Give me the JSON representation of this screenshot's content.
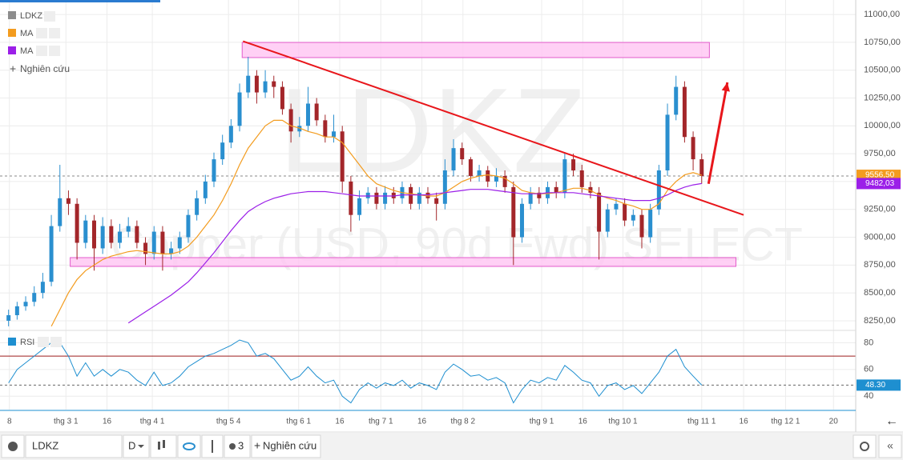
{
  "chart_data": [
    {
      "type": "candlestick",
      "name": "LDKZ",
      "color": "#8c8c8c",
      "up_color": "#2a8fcf",
      "down_color": "#a3262a",
      "watermark": "LDKZ",
      "watermark_subtitle": "Copper (USD, 90d Fwd) SELECT",
      "x": [
        1,
        2,
        3,
        4,
        5,
        6,
        7,
        8,
        9,
        10,
        11,
        12,
        13,
        14,
        15,
        16,
        17,
        18,
        19,
        20,
        21,
        22,
        23,
        24,
        25,
        26,
        27,
        28,
        29,
        30,
        31,
        32,
        33,
        34,
        35,
        36,
        37,
        38,
        39,
        40,
        41,
        42,
        43,
        44,
        45,
        46,
        47,
        48,
        49,
        50,
        51,
        52,
        53,
        54,
        55,
        56,
        57,
        58,
        59,
        60,
        61,
        62,
        63,
        64,
        65,
        66,
        67,
        68,
        69,
        70,
        71,
        72,
        73,
        74,
        75,
        76,
        77,
        78,
        79,
        80,
        81,
        82
      ],
      "open": [
        8250,
        8300,
        8380,
        8420,
        8500,
        8600,
        9100,
        9350,
        9300,
        8950,
        9150,
        8900,
        9100,
        8950,
        9050,
        9100,
        8950,
        8850,
        9050,
        8850,
        8900,
        9000,
        9200,
        9350,
        9500,
        9700,
        9850,
        10000,
        10300,
        10450,
        10300,
        10400,
        10350,
        10150,
        9950,
        10000,
        10200,
        10050,
        9900,
        9950,
        9500,
        9200,
        9350,
        9400,
        9300,
        9400,
        9350,
        9450,
        9300,
        9400,
        9350,
        9300,
        9600,
        9800,
        9700,
        9550,
        9600,
        9500,
        9550,
        9450,
        9000,
        9300,
        9400,
        9350,
        9450,
        9400,
        9700,
        9600,
        9450,
        9400,
        9050,
        9250,
        9300,
        9150,
        9200,
        9000,
        9250,
        9600,
        10100,
        10350,
        9900,
        9700
      ],
      "high": [
        8350,
        8420,
        8470,
        8560,
        8680,
        9200,
        9650,
        9420,
        9350,
        9200,
        9200,
        9180,
        9160,
        9120,
        9180,
        9150,
        9000,
        9100,
        9100,
        8960,
        9050,
        9250,
        9420,
        9560,
        9760,
        9920,
        10060,
        10380,
        10620,
        10500,
        10500,
        10450,
        10400,
        10200,
        10080,
        10350,
        10250,
        10100,
        10100,
        10000,
        9550,
        9420,
        9450,
        9450,
        9460,
        9450,
        9500,
        9480,
        9450,
        9450,
        9400,
        9700,
        9880,
        9850,
        9720,
        9650,
        9640,
        9620,
        9600,
        9500,
        9350,
        9450,
        9450,
        9500,
        9500,
        9760,
        9750,
        9650,
        9500,
        9450,
        9300,
        9350,
        9350,
        9250,
        9250,
        9300,
        9650,
        10200,
        10450,
        10400,
        9950,
        9750
      ],
      "low": [
        8200,
        8260,
        8340,
        8380,
        8450,
        8560,
        9050,
        9200,
        8800,
        8900,
        8700,
        8850,
        8900,
        8900,
        9000,
        8900,
        8750,
        8800,
        8700,
        8800,
        8850,
        8950,
        9150,
        9300,
        9450,
        9650,
        9800,
        9950,
        10250,
        10200,
        10250,
        10250,
        10100,
        9850,
        9900,
        9950,
        10000,
        9850,
        9850,
        9400,
        9050,
        9150,
        9300,
        9250,
        9250,
        9300,
        9300,
        9250,
        9250,
        9300,
        9150,
        9250,
        9550,
        9650,
        9500,
        9500,
        9450,
        9450,
        9400,
        8750,
        8950,
        9250,
        9300,
        9300,
        9350,
        9350,
        9550,
        9400,
        9350,
        8800,
        9000,
        9200,
        9100,
        9100,
        8900,
        8950,
        9200,
        9550,
        10050,
        9850,
        9600,
        9480
      ],
      "close": [
        8300,
        8380,
        8420,
        8500,
        8600,
        9100,
        9350,
        9300,
        8950,
        9150,
        8900,
        9100,
        8950,
        9050,
        9100,
        8950,
        8850,
        9050,
        8850,
        8900,
        9000,
        9200,
        9350,
        9500,
        9700,
        9850,
        10000,
        10300,
        10450,
        10300,
        10400,
        10350,
        10150,
        9950,
        10000,
        10200,
        10050,
        9900,
        9950,
        9500,
        9200,
        9350,
        9400,
        9300,
        9400,
        9350,
        9450,
        9300,
        9400,
        9350,
        9300,
        9600,
        9800,
        9700,
        9550,
        9600,
        9500,
        9550,
        9450,
        9000,
        9300,
        9400,
        9350,
        9450,
        9400,
        9700,
        9600,
        9450,
        9400,
        9050,
        9250,
        9300,
        9150,
        9200,
        9000,
        9250,
        9600,
        10100,
        10350,
        9900,
        9700,
        9550
      ],
      "series": [
        {
          "name": "MA",
          "color": "#f39c1f",
          "last_label": "9556,50",
          "values": [
            null,
            null,
            null,
            null,
            null,
            8200,
            8350,
            8500,
            8620,
            8700,
            8750,
            8800,
            8830,
            8850,
            8870,
            8880,
            8870,
            8860,
            8850,
            8850,
            8870,
            8920,
            9000,
            9100,
            9200,
            9330,
            9480,
            9650,
            9800,
            9900,
            10000,
            10050,
            10050,
            10000,
            9980,
            9950,
            9930,
            9900,
            9900,
            9850,
            9750,
            9650,
            9550,
            9480,
            9450,
            9420,
            9400,
            9390,
            9380,
            9370,
            9370,
            9400,
            9450,
            9500,
            9530,
            9550,
            9560,
            9550,
            9530,
            9480,
            9420,
            9400,
            9390,
            9390,
            9400,
            9420,
            9440,
            9440,
            9420,
            9380,
            9350,
            9330,
            9300,
            9280,
            9250,
            9250,
            9300,
            9420,
            9500,
            9560,
            9580,
            9556.5
          ]
        },
        {
          "name": "MA",
          "color": "#9b1fe8",
          "last_label": "9482,03",
          "values": [
            null,
            null,
            null,
            null,
            null,
            null,
            null,
            null,
            null,
            null,
            null,
            null,
            null,
            null,
            8230,
            8280,
            8330,
            8380,
            8430,
            8480,
            8540,
            8600,
            8680,
            8770,
            8860,
            8960,
            9060,
            9150,
            9230,
            9280,
            9320,
            9350,
            9370,
            9390,
            9400,
            9410,
            9410,
            9410,
            9400,
            9390,
            9380,
            9370,
            9370,
            9370,
            9370,
            9370,
            9380,
            9380,
            9380,
            9380,
            9390,
            9400,
            9410,
            9420,
            9430,
            9430,
            9430,
            9420,
            9410,
            9400,
            9390,
            9390,
            9390,
            9400,
            9400,
            9400,
            9400,
            9390,
            9380,
            9370,
            9360,
            9350,
            9340,
            9330,
            9330,
            9330,
            9350,
            9380,
            9420,
            9450,
            9470,
            9482.03
          ]
        }
      ],
      "zones": [
        {
          "xlim": [
            28.3,
            82.9
          ],
          "ylim": [
            10613,
            10749
          ]
        },
        {
          "xlim": [
            8.2,
            86
          ],
          "ylim": [
            8738,
            8817
          ]
        }
      ],
      "trendline": {
        "x": [
          28.4,
          86.9
        ],
        "y": [
          10760,
          9200
        ]
      },
      "arrow": {
        "x": [
          82.8,
          85
        ],
        "y": [
          9480,
          10390
        ]
      },
      "xlim": [
        0,
        100
      ],
      "ylim": [
        8185,
        11130
      ],
      "grid": true,
      "xticks": [
        {
          "value": 1.1,
          "label": "8"
        },
        {
          "value": 7.7,
          "label": "thg 3 1"
        },
        {
          "value": 12.5,
          "label": "16"
        },
        {
          "value": 17.8,
          "label": "thg 4 1"
        },
        {
          "value": 26.7,
          "label": "thg 5 4"
        },
        {
          "value": 34.9,
          "label": "thg 6 1"
        },
        {
          "value": 39.7,
          "label": "16"
        },
        {
          "value": 44.5,
          "label": "thg 7 1"
        },
        {
          "value": 49.3,
          "label": "16"
        },
        {
          "value": 54.1,
          "label": "thg 8 2"
        },
        {
          "value": 63.3,
          "label": "thg 9 1"
        },
        {
          "value": 68.1,
          "label": "16"
        },
        {
          "value": 72.8,
          "label": "thg 10 1"
        },
        {
          "value": 82,
          "label": "thg 11 1"
        },
        {
          "value": 86.9,
          "label": "16"
        },
        {
          "value": 91.8,
          "label": "thg 12 1"
        },
        {
          "value": 97.4,
          "label": "20"
        }
      ],
      "yticks": [
        {
          "value": 8250,
          "label": "8250,00"
        },
        {
          "value": 8500,
          "label": "8500,00"
        },
        {
          "value": 8750,
          "label": "8750,00"
        },
        {
          "value": 9000,
          "label": "9000,00"
        },
        {
          "value": 9250,
          "label": "9250,00"
        },
        {
          "value": 9500,
          "label": "9500,00"
        },
        {
          "value": 9750,
          "label": "9750,00"
        },
        {
          "value": 10000,
          "label": "10000,00"
        },
        {
          "value": 10250,
          "label": "10250,00"
        },
        {
          "value": 10500,
          "label": "10500,00"
        },
        {
          "value": 10750,
          "label": "10750,00"
        },
        {
          "value": 11000,
          "label": "11000,00"
        }
      ],
      "add_study": "Nghiên cứu"
    },
    {
      "type": "line",
      "series": [
        {
          "name": "RSI",
          "color": "#1e8fd0",
          "last_label": "48.30",
          "values": [
            50,
            60,
            65,
            70,
            75,
            80,
            80,
            70,
            55,
            65,
            55,
            60,
            55,
            60,
            58,
            52,
            48,
            58,
            48,
            50,
            55,
            62,
            66,
            70,
            72,
            75,
            78,
            82,
            80,
            70,
            72,
            68,
            60,
            52,
            55,
            62,
            55,
            50,
            52,
            40,
            35,
            45,
            50,
            46,
            50,
            48,
            52,
            46,
            50,
            48,
            45,
            58,
            64,
            60,
            55,
            56,
            52,
            54,
            50,
            35,
            45,
            52,
            50,
            54,
            52,
            63,
            58,
            52,
            50,
            40,
            48,
            50,
            45,
            48,
            42,
            50,
            58,
            70,
            75,
            62,
            55,
            48.3
          ]
        }
      ],
      "x": [
        1,
        2,
        3,
        4,
        5,
        6,
        7,
        8,
        9,
        10,
        11,
        12,
        13,
        14,
        15,
        16,
        17,
        18,
        19,
        20,
        21,
        22,
        23,
        24,
        25,
        26,
        27,
        28,
        29,
        30,
        31,
        32,
        33,
        34,
        35,
        36,
        37,
        38,
        39,
        40,
        41,
        42,
        43,
        44,
        45,
        46,
        47,
        48,
        49,
        50,
        51,
        52,
        53,
        54,
        55,
        56,
        57,
        58,
        59,
        60,
        61,
        62,
        63,
        64,
        65,
        66,
        67,
        68,
        69,
        70,
        71,
        72,
        73,
        74,
        75,
        76,
        77,
        78,
        79,
        80,
        81,
        82
      ],
      "level": 70,
      "level_color": "#9e1c1c",
      "xlim": [
        0,
        100
      ],
      "ylim": [
        30,
        88
      ],
      "yticks": [
        40,
        60,
        80
      ],
      "grid": true
    }
  ],
  "toolbar": {
    "symbol": "LDKZ",
    "interval": "D",
    "layout_count": "3",
    "add_study": "Nghiên cứu"
  }
}
